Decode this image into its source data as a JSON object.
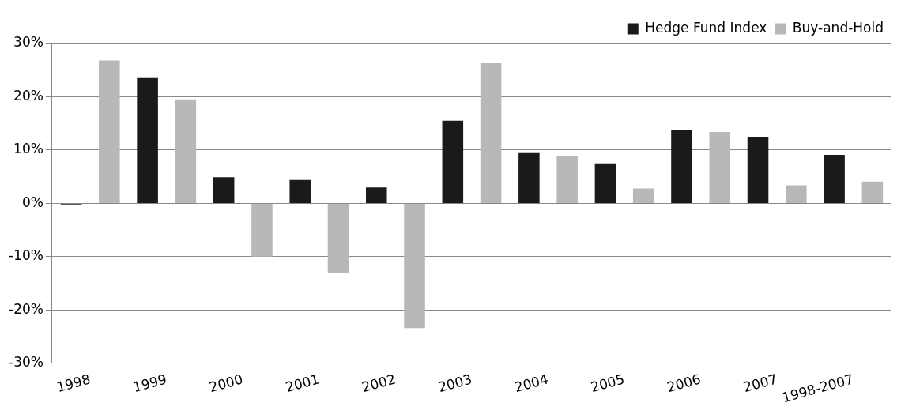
{
  "chart_data": {
    "type": "bar",
    "categories": [
      "1998",
      "1999",
      "2000",
      "2001",
      "2002",
      "2003",
      "2004",
      "2005",
      "2006",
      "2007",
      "1998-2007"
    ],
    "series": [
      {
        "name": "Hedge Fund Index",
        "color": "#1a1a1a",
        "values": [
          -0.2,
          23.5,
          4.9,
          4.4,
          3.0,
          15.5,
          9.6,
          7.5,
          13.8,
          12.4,
          9.1
        ]
      },
      {
        "name": "Buy-and-Hold",
        "color": "#b8b8b8",
        "values": [
          26.8,
          19.5,
          -10.0,
          -13.0,
          -23.4,
          26.3,
          8.8,
          2.8,
          13.4,
          3.4,
          4.1
        ]
      }
    ],
    "ylim": [
      -30,
      30
    ],
    "yticks": [
      {
        "value": -30,
        "label": "-30%"
      },
      {
        "value": -20,
        "label": "-20%"
      },
      {
        "value": -10,
        "label": "-10%"
      },
      {
        "value": 0,
        "label": "0%"
      },
      {
        "value": 10,
        "label": "10%"
      },
      {
        "value": 20,
        "label": "20%"
      },
      {
        "value": 30,
        "label": "30%"
      }
    ],
    "grid": "y",
    "legend": "top right"
  }
}
